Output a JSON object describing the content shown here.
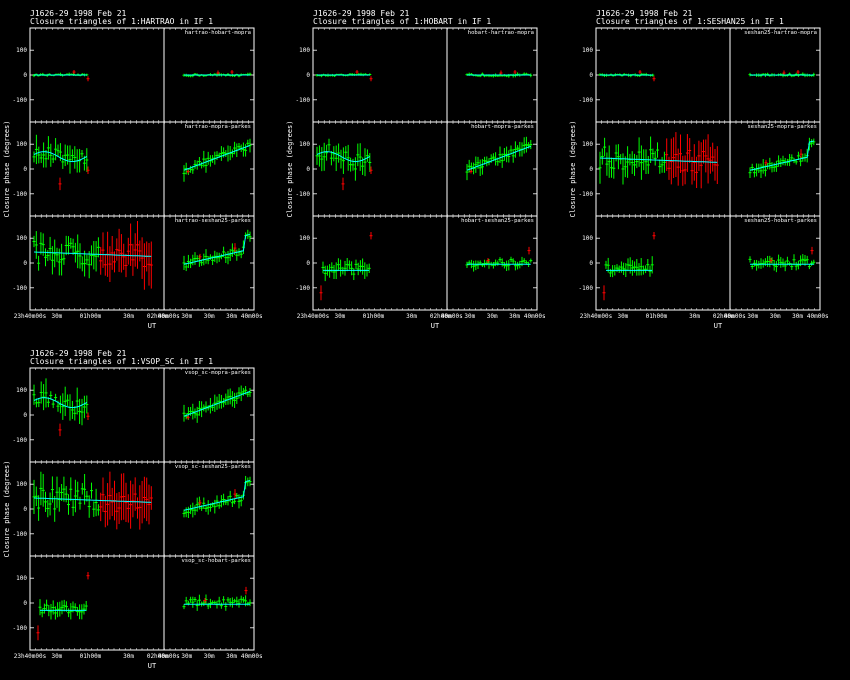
{
  "colors": {
    "background": "#000000",
    "axes": "#ffffff",
    "model": "#00ffff",
    "good": "#00ff00",
    "flagged": "#ff0000"
  },
  "chart_data": [
    {
      "type": "scatter",
      "title": "J1626-29   1998 Feb 21",
      "subtitle": "Closure triangles of 1:HARTRAO in IF 1",
      "ylabel": "Closure phase  (degrees)",
      "xlabel": "UT",
      "xticks": [
        "23h40m00s",
        "30m",
        "01h00m",
        "30m",
        "02h00m",
        "40m00s",
        "30m",
        "30m",
        "30m",
        "40m00s"
      ],
      "yticks": [
        "100",
        "0",
        "-100"
      ],
      "ylim": [
        -180,
        180
      ],
      "grid": false,
      "panels": [
        {
          "label": "hartrao-hobart-mopra",
          "style": "flat"
        },
        {
          "label": "hartrao-mopra-parkes",
          "style": "trend"
        },
        {
          "label": "hartrao-seshan25-parkes",
          "style": "scatter_mid"
        }
      ]
    },
    {
      "type": "scatter",
      "title": "J1626-29   1998 Feb 21",
      "subtitle": "Closure triangles of 1:HOBART in IF 1",
      "ylabel": "Closure phase  (degrees)",
      "xlabel": "UT",
      "xticks": [
        "23h40m00s",
        "30m",
        "01h00m",
        "30m",
        "02h00m",
        "40m00s",
        "30m",
        "30m",
        "30m",
        "40m00s"
      ],
      "yticks": [
        "100",
        "0",
        "-100"
      ],
      "ylim": [
        -180,
        180
      ],
      "grid": false,
      "panels": [
        {
          "label": "hobart-hartrao-mopra",
          "style": "flat"
        },
        {
          "label": "hobart-mopra-parkes",
          "style": "trend"
        },
        {
          "label": "hobart-seshan25-parkes",
          "style": "low_cluster"
        }
      ]
    },
    {
      "type": "scatter",
      "title": "J1626-29   1998 Feb 21",
      "subtitle": "Closure triangles of 1:SESHAN25 in IF 1",
      "ylabel": "Closure phase  (degrees)",
      "xlabel": "UT",
      "xticks": [
        "23h40m00s",
        "30m",
        "01h00m",
        "30m",
        "02h00m",
        "40m00s",
        "30m",
        "30m",
        "30m",
        "40m00s"
      ],
      "yticks": [
        "100",
        "0",
        "-100"
      ],
      "ylim": [
        -180,
        180
      ],
      "grid": false,
      "panels": [
        {
          "label": "seshan25-hartrao-mopra",
          "style": "flat"
        },
        {
          "label": "seshan25-mopra-parkes",
          "style": "scatter_mid"
        },
        {
          "label": "seshan25-hobart-parkes",
          "style": "low_cluster"
        }
      ]
    },
    {
      "type": "scatter",
      "title": "J1626-29   1998 Feb 21",
      "subtitle": "Closure triangles of 1:VSOP_SC in IF 1",
      "ylabel": "Closure phase  (degrees)",
      "xlabel": "UT",
      "xticks": [
        "23h40m00s",
        "30m",
        "01h00m",
        "30m",
        "02h00m",
        "40m00s",
        "30m",
        "30m",
        "30m",
        "40m00s"
      ],
      "yticks": [
        "100",
        "0",
        "-100"
      ],
      "ylim": [
        -180,
        180
      ],
      "grid": false,
      "panels": [
        {
          "label": "vsop_sc-mopra-parkes",
          "style": "trend"
        },
        {
          "label": "vsop_sc-seshan25-parkes",
          "style": "scatter_mid"
        },
        {
          "label": "vsop_sc-hobart-parkes",
          "style": "low_cluster"
        }
      ]
    }
  ]
}
